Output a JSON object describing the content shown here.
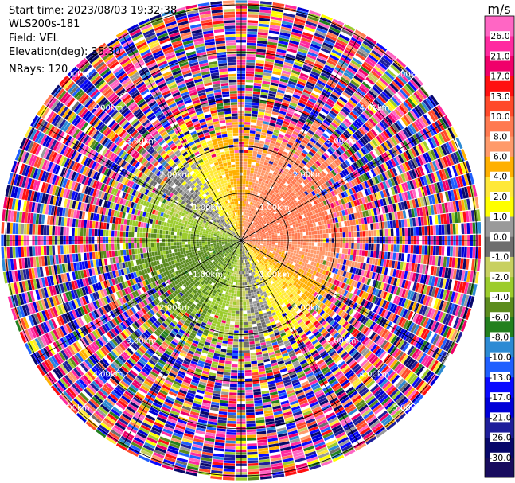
{
  "header": {
    "start_time": "Start time: 2023/08/03 19:32:38",
    "instrument": "WLS200s-181",
    "field": "Field: VEL",
    "elevation": "Elevation(deg): 35.30",
    "nrays": "NRays: 120"
  },
  "chart_data": {
    "type": "heatmap",
    "projection": "polar",
    "field": "VEL",
    "units": "m/s",
    "n_rays": 120,
    "range_rings_km": [
      1.0,
      2.0,
      3.0,
      4.0,
      5.0
    ],
    "range_ring_labels": [
      "1.00km",
      "2.00km",
      "3.00km",
      "4.00km",
      "5.00km"
    ],
    "max_range_km": 5.1,
    "radial_lines_deg": [
      0,
      30,
      60,
      90,
      120,
      150,
      180,
      210,
      240,
      270,
      300,
      330
    ],
    "grid": true,
    "wind": {
      "toward_deg": 60,
      "speed_ms": 7,
      "bias_ms": 2,
      "clean_radius_km": 1.6,
      "noise_start_km": 3.0
    },
    "colorbar": {
      "title": "m/s",
      "levels": [
        -30,
        -26,
        -21,
        -17,
        -13,
        -10,
        -8,
        -6,
        -4,
        -2,
        -1,
        0,
        1,
        2,
        4,
        6,
        8,
        10,
        13,
        17,
        21,
        26
      ],
      "tick_labels": [
        "-30.0",
        "-26.0",
        "-21.0",
        "-17.0",
        "-13.0",
        "-10.0",
        "-8.0",
        "-6.0",
        "-4.0",
        "-2.0",
        "-1.0",
        "0.0",
        "1.0",
        "2.0",
        "4.0",
        "6.0",
        "8.0",
        "10.0",
        "13.0",
        "17.0",
        "21.0",
        "26.0"
      ],
      "colors": [
        "#180c5e",
        "#08086a",
        "#1e1e9a",
        "#0000d8",
        "#0a0aff",
        "#1f5fff",
        "#2c8ad4",
        "#23801e",
        "#5c8c1e",
        "#9ccc2c",
        "#c8d060",
        "#6e6e6e",
        "#9a9a9a",
        "#ffff00",
        "#ffe838",
        "#ffb000",
        "#ff9a6a",
        "#ff7a50",
        "#ff4a2a",
        "#ff1010",
        "#f0006a",
        "#ff2aa0",
        "#ff66c4"
      ],
      "placement": "right"
    }
  }
}
